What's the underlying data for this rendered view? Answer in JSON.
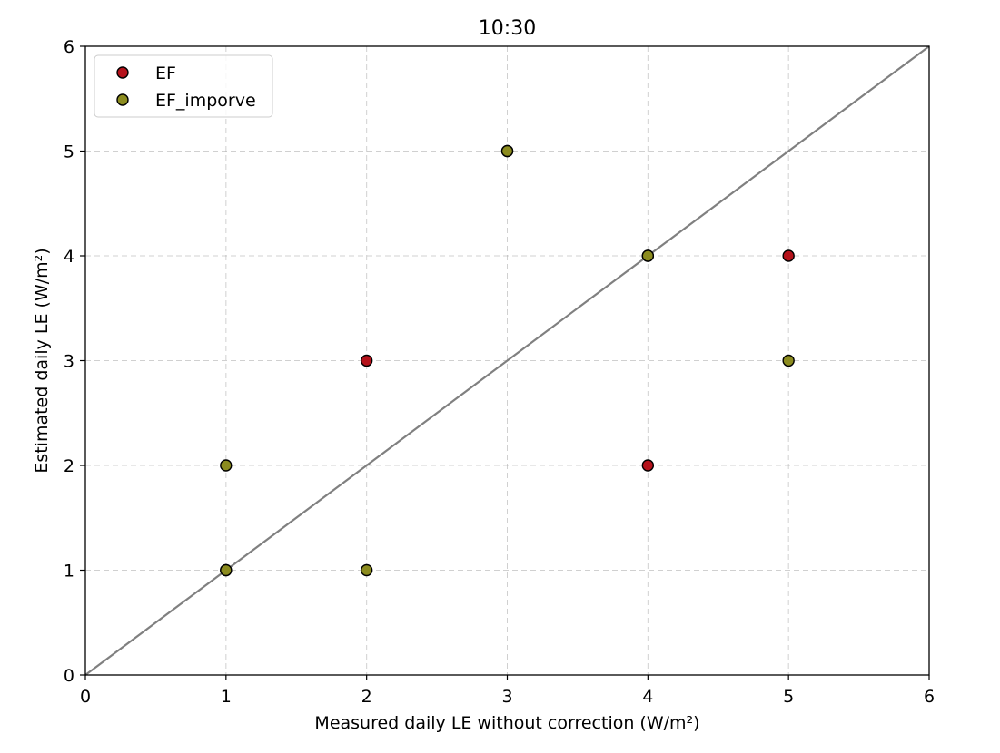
{
  "chart_data": {
    "type": "scatter",
    "title": "10:30",
    "xlabel": "Measured daily LE without correction (W/m²)",
    "ylabel": "Estimated daily LE (W/m²)",
    "xlim": [
      0,
      6
    ],
    "ylim": [
      0,
      6
    ],
    "xticks": [
      "0",
      "1",
      "2",
      "3",
      "4",
      "5",
      "6"
    ],
    "yticks": [
      "0",
      "1",
      "2",
      "3",
      "4",
      "5",
      "6"
    ],
    "grid": true,
    "legend_position": "top-left",
    "reference_line": {
      "from": [
        0,
        0
      ],
      "to": [
        6,
        6
      ],
      "color": "#808080"
    },
    "series": [
      {
        "name": "EF",
        "color": "#b5121b",
        "marker": "circle-plus",
        "points": [
          [
            1,
            1
          ],
          [
            2,
            3
          ],
          [
            3,
            5
          ],
          [
            4,
            2
          ],
          [
            4,
            4
          ],
          [
            5,
            4
          ]
        ]
      },
      {
        "name": "EF_imporve",
        "color": "#8c8c1f",
        "marker": "circle",
        "points": [
          [
            1,
            2
          ],
          [
            1,
            1
          ],
          [
            2,
            1
          ],
          [
            3,
            5
          ],
          [
            4,
            4
          ],
          [
            5,
            3
          ]
        ]
      }
    ]
  }
}
